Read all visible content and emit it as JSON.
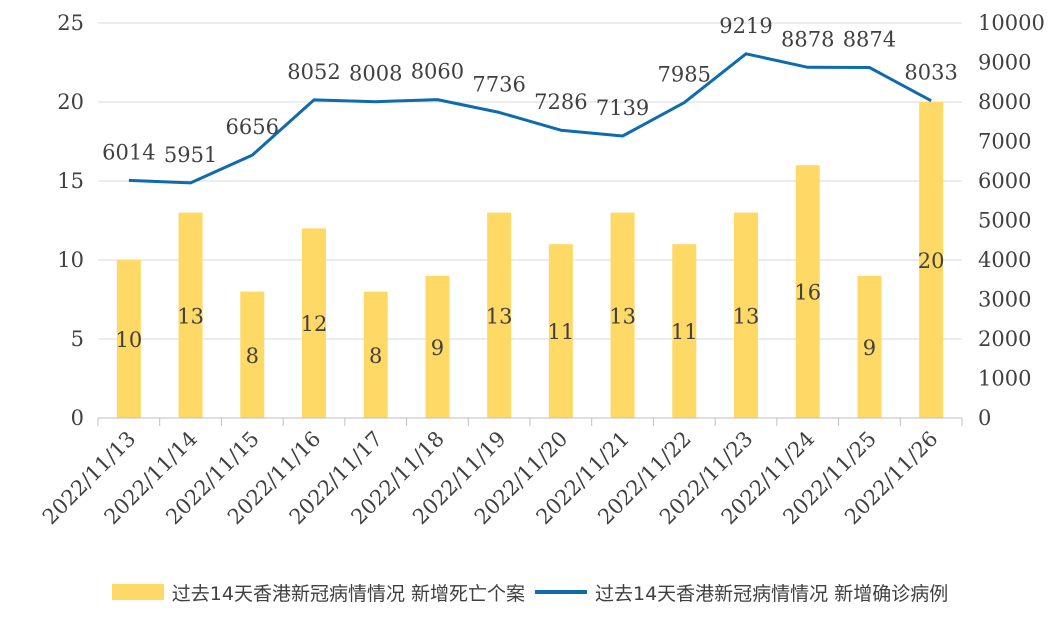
{
  "chart_data": {
    "type": "bar+line",
    "categories": [
      "2022/11/13",
      "2022/11/14",
      "2022/11/15",
      "2022/11/16",
      "2022/11/17",
      "2022/11/18",
      "2022/11/19",
      "2022/11/20",
      "2022/11/21",
      "2022/11/22",
      "2022/11/23",
      "2022/11/24",
      "2022/11/25",
      "2022/11/26"
    ],
    "series": [
      {
        "name": "过去14天香港新冠病情情况 新增死亡个案",
        "type": "bar",
        "axis": "left",
        "color": "#FFD966",
        "values": [
          10,
          13,
          8,
          12,
          8,
          9,
          13,
          11,
          13,
          11,
          13,
          16,
          9,
          20
        ]
      },
      {
        "name": "过去14天香港新冠病情情况 新增确诊病例",
        "type": "line",
        "axis": "right",
        "color": "#0F6AAE",
        "values": [
          6014,
          5951,
          6656,
          8052,
          8008,
          8060,
          7736,
          7286,
          7139,
          7985,
          9219,
          8878,
          8874,
          8033
        ]
      }
    ],
    "y_left": {
      "ylim": [
        0,
        25
      ],
      "ticks": [
        "0",
        "5",
        "10",
        "15",
        "20",
        "25"
      ]
    },
    "y_right": {
      "ylim": [
        0,
        10000
      ],
      "ticks": [
        "0",
        "1000",
        "2000",
        "3000",
        "4000",
        "5000",
        "6000",
        "7000",
        "8000",
        "9000",
        "10000"
      ]
    },
    "grid": "horizontal",
    "legend_position": "bottom"
  }
}
